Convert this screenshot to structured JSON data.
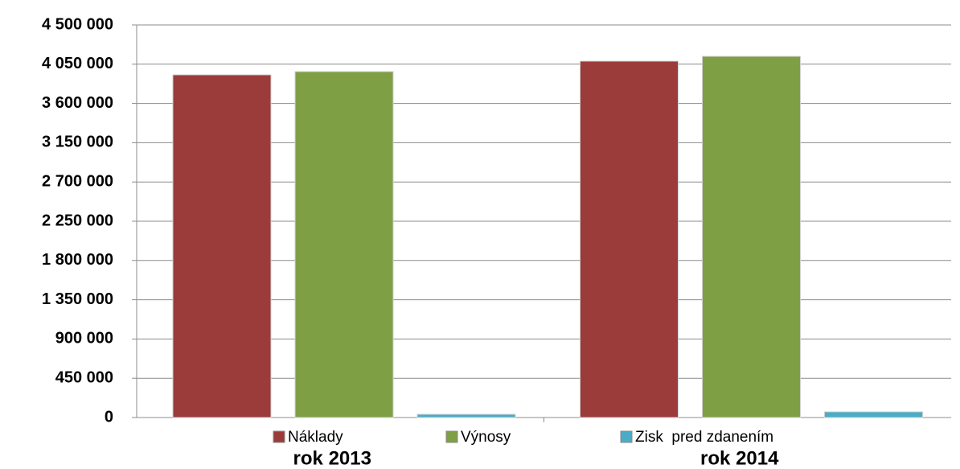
{
  "chart_data": {
    "type": "bar",
    "categories": [
      "rok 2013",
      "rok 2014"
    ],
    "series": [
      {
        "name": "Náklady",
        "color": "#9b3b3a",
        "values": [
          3928000,
          4085000
        ]
      },
      {
        "name": "Výnosy",
        "color": "#7f9f45",
        "values": [
          3965000,
          4140000
        ]
      },
      {
        "name": "Zisk  pred zdanením",
        "color": "#4bacc6",
        "values": [
          37000,
          65000
        ]
      }
    ],
    "ylim": [
      0,
      4500000
    ],
    "yticks": [
      0,
      {
        "value": 450000,
        "label": "450 000"
      },
      {
        "value": 900000,
        "label": "900 000"
      },
      {
        "value": 1350000,
        "label": "1 350 000"
      },
      {
        "value": 1800000,
        "label": "1 800 000"
      },
      {
        "value": 2250000,
        "label": "2 250 000"
      },
      {
        "value": 2700000,
        "label": "2 700 000"
      },
      {
        "value": 3150000,
        "label": "3 150 000"
      },
      {
        "value": 3600000,
        "label": "3 600 000"
      },
      {
        "value": 4050000,
        "label": "4 050 000"
      },
      {
        "value": 4500000,
        "label": "4 500 000"
      }
    ],
    "grid": true,
    "legend": "bottom"
  }
}
